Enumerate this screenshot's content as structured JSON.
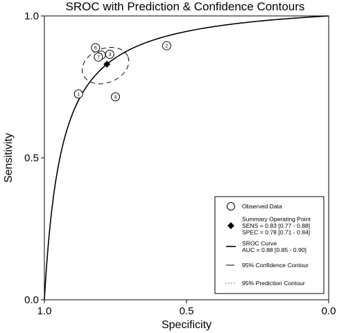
{
  "chart_data": {
    "type": "scatter",
    "title": "SROC with Prediction & Confidence Contours",
    "xlabel": "Specificity",
    "ylabel": "Sensitivity",
    "x_reversed": true,
    "xlim": [
      1.0,
      0.0
    ],
    "ylim": [
      0.0,
      1.0
    ],
    "x_ticks": [
      "1.0",
      "0.5",
      "0.0"
    ],
    "y_ticks": [
      "0.0",
      "0.5",
      "1.0"
    ],
    "grid": false,
    "legend_position": "bottom-right",
    "studies": [
      {
        "id": "1",
        "specificity": 0.88,
        "sensitivity": 0.725
      },
      {
        "id": "2",
        "specificity": 0.57,
        "sensitivity": 0.895
      },
      {
        "id": "3",
        "specificity": 0.77,
        "sensitivity": 0.865
      },
      {
        "id": "4",
        "specificity": 0.75,
        "sensitivity": 0.715
      },
      {
        "id": "5",
        "specificity": 0.8,
        "sensitivity": 0.862
      },
      {
        "id": "6",
        "specificity": 0.82,
        "sensitivity": 0.888
      },
      {
        "id": "7",
        "specificity": 0.81,
        "sensitivity": 0.855
      }
    ],
    "summary_point": {
      "specificity": 0.78,
      "sensitivity": 0.83
    },
    "sroc_auc": 0.88,
    "confidence_contour": {
      "center_specificity": 0.785,
      "center_sensitivity": 0.825,
      "spec_halfwidth": 0.085,
      "sens_halfwidth": 0.06
    },
    "prediction_contour_visible": false,
    "legend": [
      {
        "symbol": "circle",
        "lines": [
          "Observed Data"
        ]
      },
      {
        "symbol": "diamond",
        "lines": [
          "Summary Operating Point",
          "SENS = 0.83 [0.77 - 0.88]",
          "SPEC = 0.78 [0.71 - 0.84]"
        ]
      },
      {
        "symbol": "solid-line",
        "lines": [
          "SROC Curve",
          "AUC = 0.88 [0.85 - 0.90]"
        ]
      },
      {
        "symbol": "dashed-line",
        "lines": [
          "95% Confidence Contour"
        ]
      },
      {
        "symbol": "dotted-line",
        "lines": [
          "95% Prediction Contour"
        ]
      }
    ]
  }
}
